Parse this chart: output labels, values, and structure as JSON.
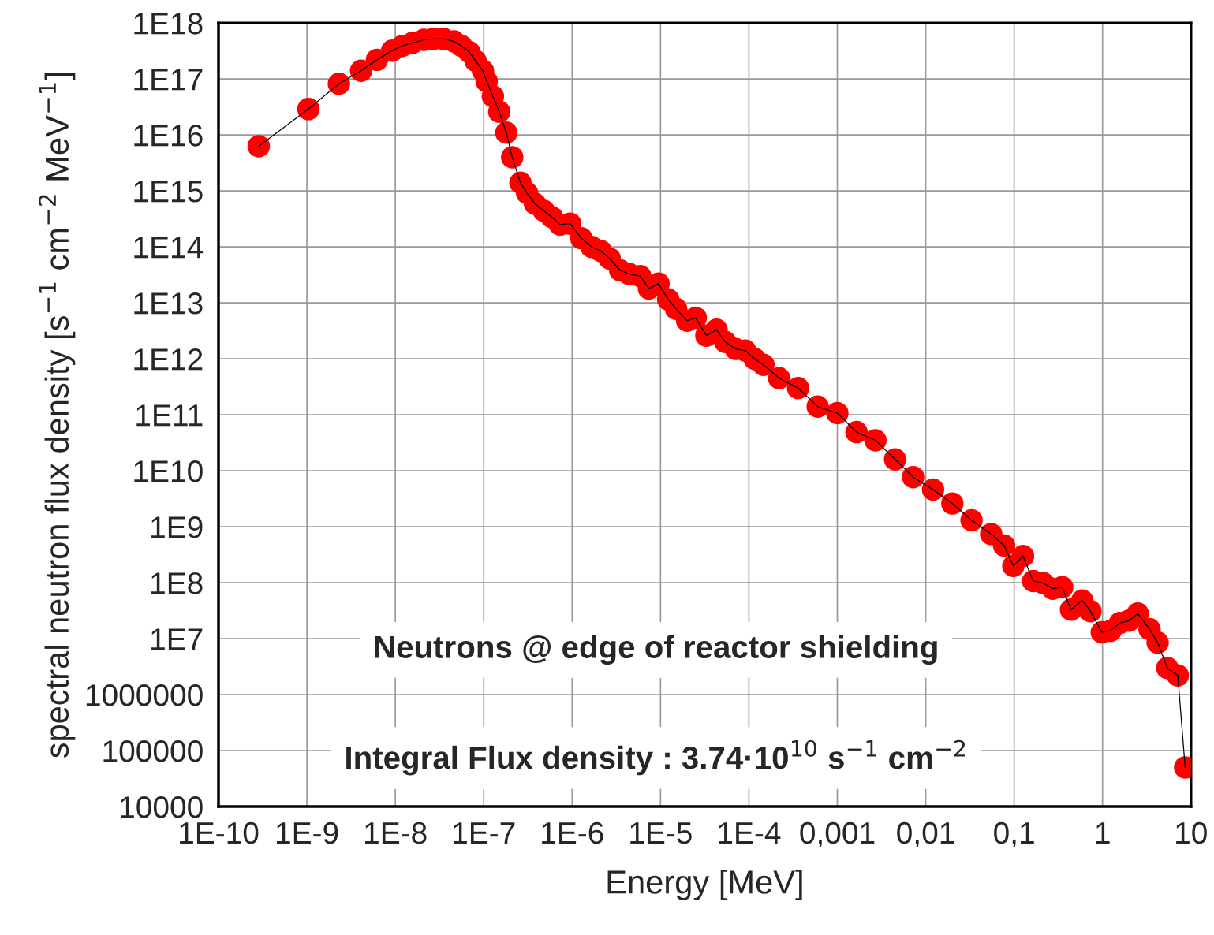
{
  "chart_data": {
    "type": "line",
    "xlabel": "Energy [MeV]",
    "ylabel": "spectral neutron flux density [s$^{−1}$ cm$^{−2}$ MeV$^{−1}$]",
    "log": "xy",
    "grid": true,
    "marker": "circle",
    "line_style": "solid",
    "xlim": [
      1e-10,
      10
    ],
    "ylim": [
      10000,
      1e+18
    ],
    "xticks": [
      {
        "value": 1e-10,
        "label": "1E-10"
      },
      {
        "value": 1e-09,
        "label": "1E-9"
      },
      {
        "value": 1e-08,
        "label": "1E-8"
      },
      {
        "value": 1e-07,
        "label": "1E-7"
      },
      {
        "value": 1e-06,
        "label": "1E-6"
      },
      {
        "value": 1e-05,
        "label": "1E-5"
      },
      {
        "value": 0.0001,
        "label": "1E-4"
      },
      {
        "value": 0.001,
        "label": "0,001"
      },
      {
        "value": 0.01,
        "label": "0,01"
      },
      {
        "value": 0.1,
        "label": "0,1"
      },
      1,
      10
    ],
    "yticks": [
      10000,
      100000,
      1000000,
      {
        "value": 10000000.0,
        "label": "1E7"
      },
      {
        "value": 100000000.0,
        "label": "1E8"
      },
      {
        "value": 1000000000.0,
        "label": "1E9"
      },
      {
        "value": 10000000000.0,
        "label": "1E10"
      },
      {
        "value": 100000000000.0,
        "label": "1E11"
      },
      {
        "value": 1000000000000.0,
        "label": "1E12"
      },
      {
        "value": 10000000000000.0,
        "label": "1E13"
      },
      {
        "value": 100000000000000.0,
        "label": "1E14"
      },
      {
        "value": 1000000000000000.0,
        "label": "1E15"
      },
      {
        "value": 1e+16,
        "label": "1E16"
      },
      {
        "value": 1e+17,
        "label": "1E17"
      },
      {
        "value": 1e+18,
        "label": "1E18"
      }
    ],
    "annotations": [
      "Neutrons @ edge of reactor shielding",
      "Integral Flux density : 3.74·10$^{10}$ s$^{−1}$ cm$^{−2}$"
    ],
    "series": [
      {
        "color": "#ff0000",
        "x": [
          2.85e-10,
          1.04e-09,
          2.3e-09,
          4.1e-09,
          6.2e-09,
          9.2e-09,
          1.2e-08,
          1.56e-08,
          2.1e-08,
          2.7e-08,
          3.5e-08,
          4.6e-08,
          5.6e-08,
          6.9e-08,
          8.1e-08,
          9.8e-08,
          1.08e-07,
          1.27e-07,
          1.5e-07,
          1.8e-07,
          2.1e-07,
          2.6e-07,
          3.1e-07,
          3.8e-07,
          4.8e-07,
          5.9e-07,
          7.3e-07,
          9.5e-07,
          1.27e-06,
          1.66e-06,
          2.1e-06,
          2.66e-06,
          3.5e-06,
          4.4e-06,
          5.9e-06,
          7.4e-06,
          9.5e-06,
          1.22e-05,
          1.5e-05,
          2e-05,
          2.5e-05,
          3.3e-05,
          4.3e-05,
          5.4e-05,
          7.1e-05,
          9.1e-05,
          0.000116,
          0.000146,
          0.00022,
          0.00036,
          0.0006,
          0.001,
          0.00165,
          0.0027,
          0.0045,
          0.0072,
          0.0121,
          0.02,
          0.033,
          0.055,
          0.077,
          0.098,
          0.126,
          0.164,
          0.214,
          0.274,
          0.35,
          0.44,
          0.59,
          0.73,
          0.98,
          1.23,
          1.57,
          2.0,
          2.5,
          3.4,
          4.2,
          5.4,
          7.1,
          8.6
        ],
        "values": [
          6300000000000000.0,
          2.9e+16,
          8.2e+16,
          1.4e+17,
          2.2e+17,
          3.2e+17,
          3.9e+17,
          4.4e+17,
          5e+17,
          5.2e+17,
          5.2e+17,
          4.7e+17,
          3.9e+17,
          3e+17,
          2.1e+17,
          1.4e+17,
          9.1e+16,
          4.9e+16,
          2.6e+16,
          1.1e+16,
          4000000000000000.0,
          1400000000000000.0,
          910000000000000.0,
          590000000000000.0,
          440000000000000.0,
          340000000000000.0,
          250000000000000.0,
          260000000000000.0,
          143000000000000.0,
          100000000000000.0,
          85000000000000.0,
          62000000000000.0,
          38000000000000.0,
          33000000000000.0,
          30000000000000.0,
          18000000000000.0,
          22000000000000.0,
          11500000000000.0,
          7800000000000.0,
          4800000000000.0,
          5400000000000.0,
          2600000000000.0,
          3300000000000.0,
          2000000000000.0,
          1500000000000.0,
          1400000000000.0,
          1000000000000.0,
          780000000000.0,
          450000000000.0,
          300000000000.0,
          140000000000.0,
          107000000000.0,
          49000000000.0,
          35000000000.0,
          16000000000.0,
          7700000000.0,
          4600000000.0,
          2600000000.0,
          1300000000.0,
          740000000.0,
          460000000.0,
          200000000.0,
          300000000.0,
          107000000.0,
          98000000.0,
          78000000.0,
          83000000.0,
          33000000.0,
          48000000.0,
          31000000.0,
          13000000.0,
          13800000.0,
          19000000.0,
          21000000.0,
          28000000.0,
          14800000.0,
          8500000.0,
          3000000.0,
          2200000.0,
          50000.0
        ]
      }
    ]
  }
}
